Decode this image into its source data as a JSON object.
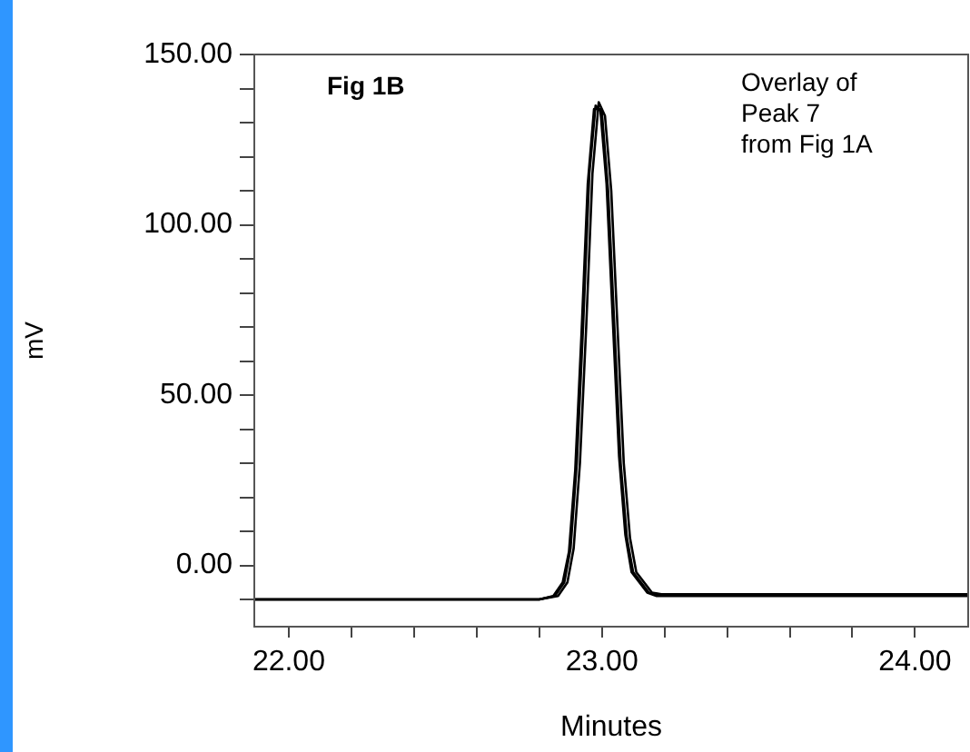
{
  "chart_data": {
    "type": "line",
    "xlabel": "Minutes",
    "ylabel": "mV",
    "annotations": [
      "Fig 1B",
      "Overlay of\nPeak 7\nfrom Fig 1A"
    ],
    "series": [
      {
        "color": "#000000",
        "x": [
          21.89,
          21.95,
          22.8,
          22.85,
          22.88,
          22.9,
          22.92,
          22.94,
          22.96,
          22.98,
          23.0,
          23.02,
          23.04,
          23.06,
          23.08,
          23.1,
          23.15,
          23.18,
          24.17
        ],
        "values": [
          -10,
          -10,
          -10,
          -9,
          -5,
          5,
          30,
          70,
          115,
          135,
          133,
          110,
          70,
          30,
          8,
          -2,
          -8,
          -8.5,
          -8.5
        ]
      },
      {
        "color": "#000000",
        "x": [
          21.89,
          21.95,
          22.8,
          22.86,
          22.89,
          22.91,
          22.93,
          22.95,
          22.97,
          22.99,
          23.01,
          23.03,
          23.05,
          23.07,
          23.09,
          23.11,
          23.16,
          23.19,
          24.17
        ],
        "values": [
          -10,
          -10,
          -10,
          -9,
          -5,
          5,
          30,
          70,
          115,
          136,
          132,
          110,
          70,
          30,
          8,
          -2,
          -8,
          -8.5,
          -8.5
        ]
      },
      {
        "color": "#000000",
        "x": [
          21.89,
          21.95,
          22.8,
          22.845,
          22.875,
          22.895,
          22.915,
          22.935,
          22.955,
          22.975,
          22.995,
          23.015,
          23.035,
          23.055,
          23.075,
          23.095,
          23.145,
          23.175,
          24.17
        ],
        "values": [
          -10,
          -10,
          -10,
          -9,
          -5,
          4,
          28,
          68,
          112,
          134,
          134,
          112,
          72,
          32,
          9,
          -2,
          -8,
          -9,
          -9
        ]
      }
    ],
    "xlim": [
      21.89,
      24.17
    ],
    "xticks": [
      {
        "value": 22,
        "label": "22.00"
      },
      {
        "value": 22.2,
        "label": null
      },
      {
        "value": 22.4,
        "label": null
      },
      {
        "value": 22.6,
        "label": null
      },
      {
        "value": 22.8,
        "label": null
      },
      {
        "value": 23,
        "label": "23.00"
      },
      {
        "value": 23.2,
        "label": null
      },
      {
        "value": 23.4,
        "label": null
      },
      {
        "value": 23.6,
        "label": null
      },
      {
        "value": 23.8,
        "label": null
      },
      {
        "value": 24,
        "label": "24.00"
      }
    ],
    "ylim": [
      -18,
      150
    ],
    "yticks": [
      {
        "value": -10,
        "label": null
      },
      {
        "value": 0,
        "label": "0.00"
      },
      {
        "value": 10,
        "label": null
      },
      {
        "value": 20,
        "label": null
      },
      {
        "value": 30,
        "label": null
      },
      {
        "value": 40,
        "label": null
      },
      {
        "value": 50,
        "label": "50.00"
      },
      {
        "value": 60,
        "label": null
      },
      {
        "value": 70,
        "label": null
      },
      {
        "value": 80,
        "label": null
      },
      {
        "value": 90,
        "label": null
      },
      {
        "value": 100,
        "label": "100.00"
      },
      {
        "value": 110,
        "label": null
      },
      {
        "value": 120,
        "label": null
      },
      {
        "value": 130,
        "label": null
      },
      {
        "value": 140,
        "label": null
      },
      {
        "value": 150,
        "label": "150.00"
      }
    ],
    "grid": false,
    "legend": false,
    "marker": "none",
    "line_style": "solid"
  }
}
